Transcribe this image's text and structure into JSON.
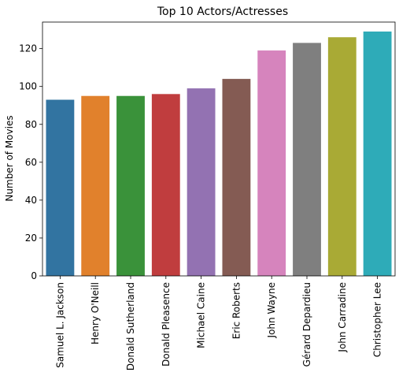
{
  "chart_data": {
    "type": "bar",
    "title": "Top 10 Actors/Actresses",
    "xlabel": "",
    "ylabel": "Number of Movies",
    "ylim": [
      0,
      134
    ],
    "yticks": [
      0,
      20,
      40,
      60,
      80,
      100,
      120
    ],
    "grid": false,
    "categories": [
      "Samuel L. Jackson",
      "Henry O'Neill",
      "Donald Sutherland",
      "Donald Pleasence",
      "Michael Caine",
      "Eric Roberts",
      "John Wayne",
      "Gérard Depardieu",
      "John Carradine",
      "Christopher Lee"
    ],
    "values": [
      93,
      95,
      95,
      96,
      99,
      104,
      119,
      123,
      126,
      129
    ],
    "colors": [
      "#3274a1",
      "#e1812c",
      "#3a923a",
      "#c03d3e",
      "#9372b2",
      "#845b53",
      "#d684bd",
      "#7f7f7f",
      "#a9aa35",
      "#2eabb8"
    ]
  }
}
